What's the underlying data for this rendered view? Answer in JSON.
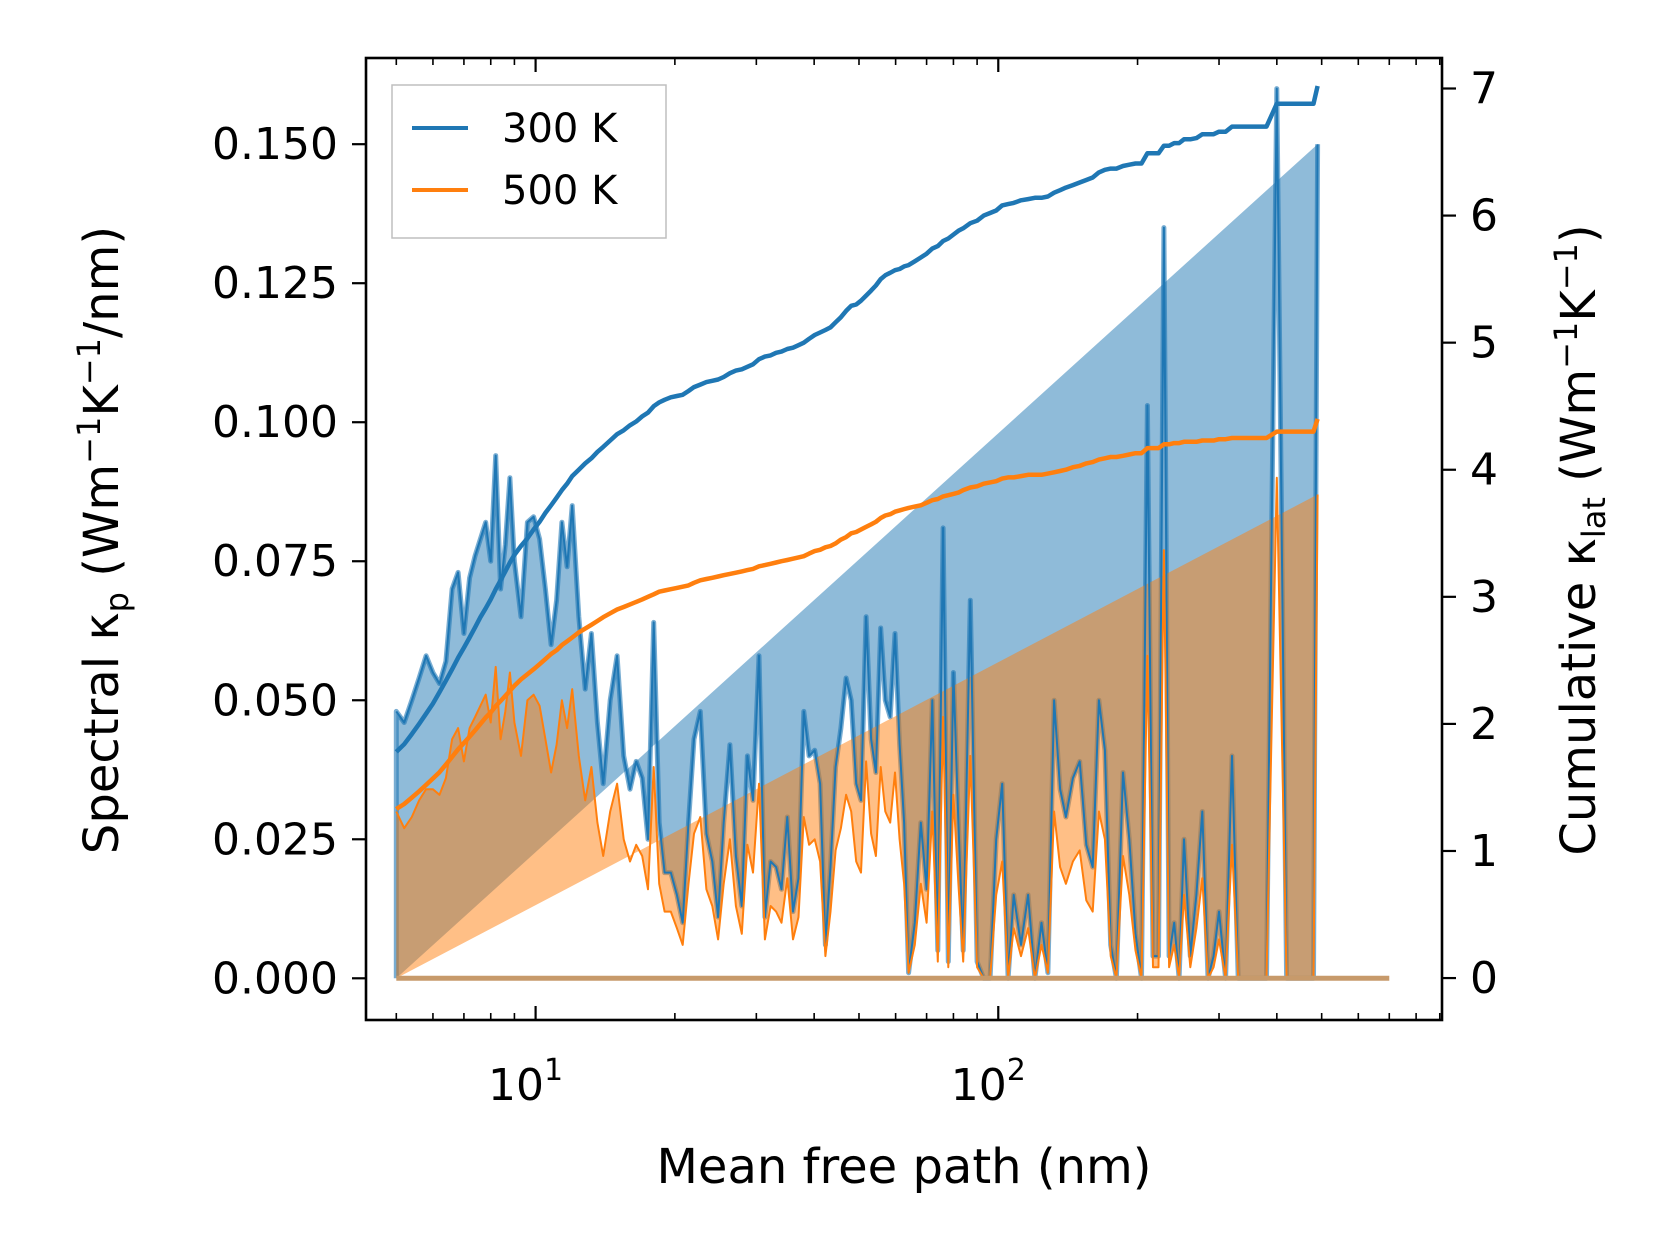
{
  "chart_data": {
    "type": "line",
    "title": "",
    "xlabel": "Mean free path (nm)",
    "xscale": "log",
    "xlim": [
      4.3,
      910
    ],
    "ylabel_left": {
      "prefix": "Spectral κ",
      "sub": "p",
      "units_open": " (Wm",
      "exp1": "−1",
      "mid": "K",
      "exp2": "−1",
      "units_close": "/nm)"
    },
    "ylabel_right": {
      "prefix": "Cumulative κ",
      "sub": "lat",
      "units_open": " (Wm",
      "exp1": "−1",
      "mid": "K",
      "exp2": "−1",
      "units_close": ")"
    },
    "ylim_left": [
      -0.0075,
      0.1655
    ],
    "ylim_right": [
      -0.33,
      7.24
    ],
    "x_ticks": [
      {
        "value": 10,
        "base": "10",
        "exp": "1"
      },
      {
        "value": 100,
        "base": "10",
        "exp": "2"
      }
    ],
    "y_ticks_left": [
      "0.000",
      "0.025",
      "0.050",
      "0.075",
      "0.100",
      "0.125",
      "0.150"
    ],
    "y_ticks_right": [
      "0",
      "1",
      "2",
      "3",
      "4",
      "5",
      "6",
      "7"
    ],
    "legend": {
      "position": "top-left",
      "entries": [
        {
          "label": "300 K",
          "color": "#1f77b4"
        },
        {
          "label": "500 K",
          "color": "#ff7f0e"
        }
      ]
    },
    "colors": {
      "c300": "#1f77b4",
      "c500": "#ff7f0e"
    },
    "x": [
      5.0,
      5.2,
      5.4,
      5.6,
      5.8,
      6.0,
      6.2,
      6.4,
      6.6,
      6.8,
      7.0,
      7.2,
      7.4,
      7.6,
      7.8,
      8.0,
      8.2,
      8.4,
      8.6,
      8.8,
      9.0,
      9.3,
      9.6,
      9.9,
      10.2,
      10.5,
      10.8,
      11.1,
      11.4,
      11.7,
      12.0,
      12.4,
      12.8,
      13.2,
      13.6,
      14.0,
      14.5,
      15.0,
      15.5,
      16.0,
      16.5,
      17.0,
      17.5,
      18.0,
      18.5,
      19.0,
      19.6,
      20.2,
      20.8,
      21.4,
      22.0,
      22.7,
      23.4,
      24.1,
      24.8,
      25.5,
      26.3,
      27.1,
      27.9,
      28.7,
      29.5,
      30.4,
      31.3,
      32.2,
      33.1,
      34.0,
      35.0,
      36.0,
      37.0,
      38.0,
      39.0,
      40.1,
      41.2,
      42.3,
      43.4,
      44.5,
      45.7,
      46.9,
      48.1,
      49.3,
      50.5,
      51.8,
      53.1,
      54.4,
      55.7,
      57.0,
      58.4,
      59.8,
      61.2,
      62.6,
      64.0,
      66.0,
      68.0,
      70.0,
      72.0,
      74.0,
      76.0,
      78.0,
      80.0,
      82.0,
      84.0,
      87.0,
      90.0,
      93.0,
      96.0,
      99.0,
      102.0,
      105.0,
      108.0,
      112.0,
      116.0,
      120.0,
      124.0,
      128.0,
      132.0,
      136.0,
      140.0,
      145.0,
      150.0,
      155.0,
      160.0,
      165.0,
      170.0,
      175.0,
      180.0,
      186.0,
      192.0,
      198.0,
      204.0,
      210.0,
      216.0,
      222.0,
      228.0,
      234.0,
      240.0,
      246.0,
      252.0,
      260.0,
      268.0,
      276.0,
      284.0,
      292.0,
      300.0,
      310.0,
      320.0,
      330.0,
      340.0,
      350.0,
      360.0,
      380.0,
      400.0,
      420.0,
      440.0,
      460.0,
      470.0,
      480.0,
      490.0,
      510.0,
      550.0,
      600.0,
      650.0,
      700.0
    ],
    "series": [
      {
        "name": "300 K",
        "color": "#1f77b4",
        "spectral": [
          0.048,
          0.046,
          0.05,
          0.054,
          0.058,
          0.055,
          0.053,
          0.057,
          0.07,
          0.073,
          0.062,
          0.072,
          0.076,
          0.079,
          0.082,
          0.075,
          0.094,
          0.07,
          0.078,
          0.09,
          0.075,
          0.065,
          0.082,
          0.083,
          0.079,
          0.07,
          0.06,
          0.068,
          0.082,
          0.074,
          0.085,
          0.065,
          0.052,
          0.062,
          0.046,
          0.035,
          0.05,
          0.058,
          0.04,
          0.034,
          0.039,
          0.036,
          0.025,
          0.064,
          0.028,
          0.019,
          0.019,
          0.015,
          0.01,
          0.028,
          0.043,
          0.048,
          0.026,
          0.021,
          0.011,
          0.028,
          0.042,
          0.022,
          0.013,
          0.04,
          0.032,
          0.058,
          0.011,
          0.021,
          0.02,
          0.016,
          0.029,
          0.012,
          0.018,
          0.048,
          0.04,
          0.041,
          0.035,
          0.006,
          0.02,
          0.038,
          0.045,
          0.054,
          0.05,
          0.035,
          0.032,
          0.065,
          0.043,
          0.037,
          0.063,
          0.05,
          0.047,
          0.062,
          0.042,
          0.028,
          0.001,
          0.01,
          0.028,
          0.016,
          0.05,
          0.005,
          0.081,
          0.003,
          0.055,
          0.028,
          0.005,
          0.068,
          0.003,
          0.0,
          0.0,
          0.025,
          0.035,
          0.0,
          0.015,
          0.006,
          0.015,
          0.0,
          0.01,
          0.001,
          0.05,
          0.034,
          0.029,
          0.036,
          0.039,
          0.024,
          0.02,
          0.05,
          0.041,
          0.006,
          0.0,
          0.037,
          0.025,
          0.008,
          0.0,
          0.103,
          0.004,
          0.004,
          0.135,
          0.004,
          0.01,
          0.0,
          0.025,
          0.004,
          0.015,
          0.03,
          0.0,
          0.004,
          0.012,
          0.0,
          0.04,
          0.0,
          0.0,
          0.0,
          0.0,
          0.0,
          0.16,
          0.0,
          0.0,
          0.0,
          0.0,
          0.0,
          0.15
        ],
        "cumulative": [
          1.78,
          1.84,
          1.92,
          2.0,
          2.08,
          2.16,
          2.25,
          2.34,
          2.43,
          2.52,
          2.6,
          2.68,
          2.76,
          2.84,
          2.91,
          2.98,
          3.06,
          3.13,
          3.2,
          3.27,
          3.33,
          3.4,
          3.46,
          3.53,
          3.59,
          3.66,
          3.72,
          3.78,
          3.84,
          3.89,
          3.95,
          4.0,
          4.05,
          4.09,
          4.14,
          4.18,
          4.23,
          4.28,
          4.31,
          4.35,
          4.38,
          4.42,
          4.45,
          4.5,
          4.53,
          4.55,
          4.57,
          4.58,
          4.59,
          4.62,
          4.65,
          4.67,
          4.69,
          4.7,
          4.71,
          4.73,
          4.76,
          4.78,
          4.79,
          4.81,
          4.83,
          4.87,
          4.89,
          4.9,
          4.92,
          4.93,
          4.95,
          4.96,
          4.98,
          5.0,
          5.03,
          5.06,
          5.08,
          5.1,
          5.12,
          5.16,
          5.2,
          5.25,
          5.29,
          5.3,
          5.33,
          5.37,
          5.41,
          5.45,
          5.5,
          5.53,
          5.55,
          5.57,
          5.58,
          5.6,
          5.61,
          5.64,
          5.67,
          5.7,
          5.74,
          5.76,
          5.8,
          5.82,
          5.85,
          5.88,
          5.9,
          5.94,
          5.96,
          6.0,
          6.02,
          6.04,
          6.08,
          6.09,
          6.1,
          6.12,
          6.13,
          6.14,
          6.14,
          6.15,
          6.18,
          6.2,
          6.22,
          6.24,
          6.26,
          6.28,
          6.3,
          6.34,
          6.36,
          6.37,
          6.37,
          6.39,
          6.4,
          6.41,
          6.41,
          6.49,
          6.49,
          6.49,
          6.55,
          6.55,
          6.57,
          6.57,
          6.6,
          6.6,
          6.61,
          6.64,
          6.64,
          6.64,
          6.66,
          6.66,
          6.7,
          6.7,
          6.7,
          6.7,
          6.7,
          6.7,
          6.88,
          6.88,
          6.88,
          6.88,
          6.88,
          6.88,
          7.02
        ]
      },
      {
        "name": "500 K",
        "color": "#ff7f0e",
        "spectral": [
          0.03,
          0.027,
          0.029,
          0.032,
          0.034,
          0.034,
          0.033,
          0.036,
          0.043,
          0.045,
          0.039,
          0.045,
          0.047,
          0.049,
          0.051,
          0.046,
          0.056,
          0.043,
          0.048,
          0.055,
          0.046,
          0.04,
          0.05,
          0.051,
          0.049,
          0.043,
          0.037,
          0.042,
          0.05,
          0.045,
          0.052,
          0.04,
          0.032,
          0.038,
          0.028,
          0.022,
          0.03,
          0.035,
          0.025,
          0.021,
          0.024,
          0.022,
          0.016,
          0.038,
          0.017,
          0.012,
          0.012,
          0.009,
          0.006,
          0.017,
          0.026,
          0.029,
          0.016,
          0.013,
          0.007,
          0.017,
          0.025,
          0.013,
          0.008,
          0.024,
          0.019,
          0.035,
          0.007,
          0.013,
          0.012,
          0.01,
          0.018,
          0.007,
          0.011,
          0.029,
          0.024,
          0.025,
          0.021,
          0.004,
          0.012,
          0.023,
          0.027,
          0.033,
          0.03,
          0.021,
          0.019,
          0.039,
          0.026,
          0.022,
          0.038,
          0.03,
          0.028,
          0.037,
          0.025,
          0.017,
          0.001,
          0.006,
          0.017,
          0.01,
          0.03,
          0.003,
          0.047,
          0.002,
          0.033,
          0.017,
          0.003,
          0.04,
          0.002,
          0.0,
          0.0,
          0.015,
          0.021,
          0.0,
          0.009,
          0.004,
          0.009,
          0.0,
          0.006,
          0.001,
          0.03,
          0.02,
          0.017,
          0.021,
          0.023,
          0.014,
          0.012,
          0.03,
          0.025,
          0.004,
          0.0,
          0.022,
          0.015,
          0.005,
          0.0,
          0.058,
          0.002,
          0.002,
          0.077,
          0.002,
          0.006,
          0.0,
          0.015,
          0.002,
          0.009,
          0.018,
          0.0,
          0.002,
          0.007,
          0.0,
          0.024,
          0.0,
          0.0,
          0.0,
          0.0,
          0.0,
          0.09,
          0.0,
          0.0,
          0.0,
          0.0,
          0.0,
          0.087
        ],
        "cumulative": [
          1.33,
          1.37,
          1.42,
          1.47,
          1.52,
          1.57,
          1.62,
          1.68,
          1.74,
          1.8,
          1.85,
          1.9,
          1.95,
          2.0,
          2.05,
          2.09,
          2.14,
          2.18,
          2.22,
          2.26,
          2.3,
          2.35,
          2.39,
          2.43,
          2.47,
          2.51,
          2.55,
          2.58,
          2.62,
          2.65,
          2.68,
          2.72,
          2.75,
          2.78,
          2.81,
          2.84,
          2.87,
          2.9,
          2.92,
          2.94,
          2.96,
          2.98,
          3.0,
          3.02,
          3.04,
          3.05,
          3.06,
          3.07,
          3.08,
          3.09,
          3.11,
          3.13,
          3.14,
          3.15,
          3.16,
          3.17,
          3.18,
          3.19,
          3.2,
          3.21,
          3.22,
          3.24,
          3.25,
          3.26,
          3.27,
          3.28,
          3.29,
          3.3,
          3.31,
          3.32,
          3.34,
          3.36,
          3.37,
          3.39,
          3.4,
          3.42,
          3.45,
          3.47,
          3.5,
          3.51,
          3.53,
          3.55,
          3.57,
          3.59,
          3.62,
          3.64,
          3.65,
          3.67,
          3.68,
          3.69,
          3.7,
          3.71,
          3.72,
          3.74,
          3.76,
          3.77,
          3.79,
          3.8,
          3.81,
          3.82,
          3.84,
          3.86,
          3.87,
          3.89,
          3.9,
          3.91,
          3.93,
          3.94,
          3.94,
          3.95,
          3.96,
          3.96,
          3.96,
          3.97,
          3.98,
          3.99,
          4.0,
          4.02,
          4.03,
          4.05,
          4.06,
          4.08,
          4.09,
          4.1,
          4.1,
          4.11,
          4.12,
          4.13,
          4.13,
          4.17,
          4.17,
          4.17,
          4.2,
          4.2,
          4.21,
          4.21,
          4.22,
          4.22,
          4.22,
          4.23,
          4.23,
          4.23,
          4.24,
          4.24,
          4.25,
          4.25,
          4.25,
          4.25,
          4.25,
          4.25,
          4.3,
          4.3,
          4.3,
          4.3,
          4.3,
          4.3,
          4.4
        ]
      }
    ]
  }
}
